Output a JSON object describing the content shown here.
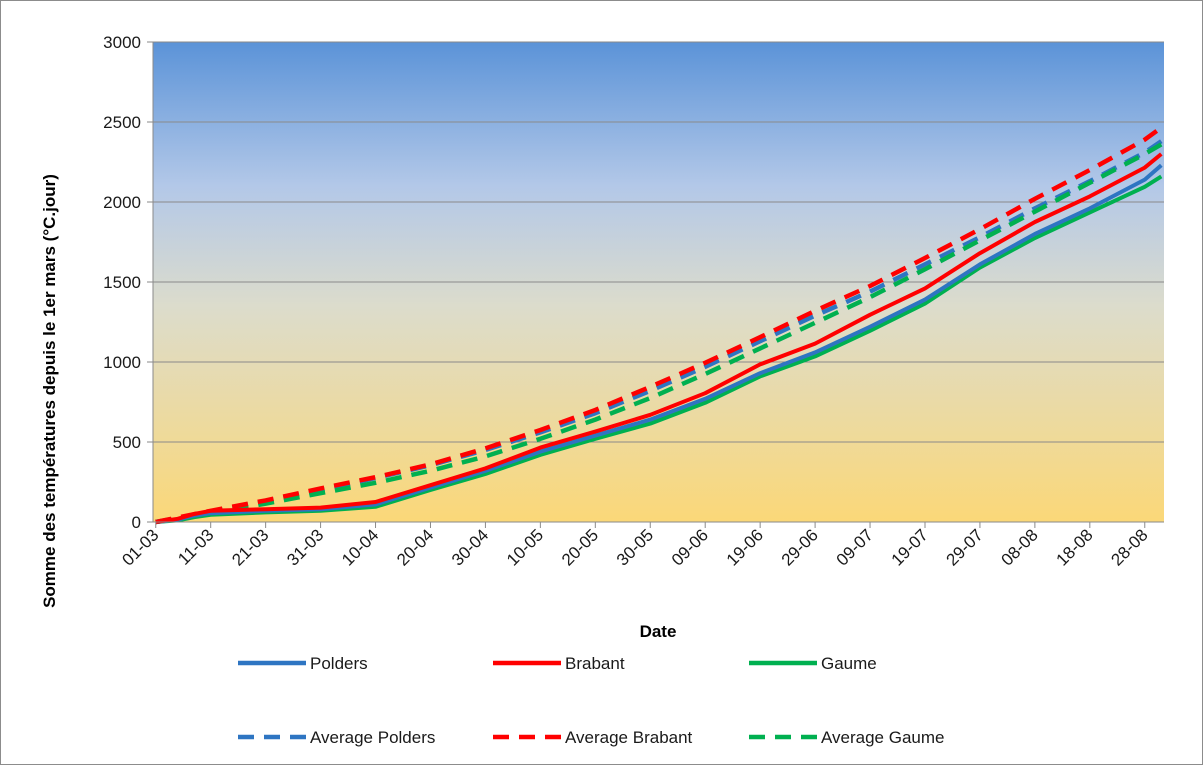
{
  "chart_data": {
    "type": "line",
    "xlabel": "Date",
    "ylabel": "Somme des températures depuis le 1er mars (°C.jour)",
    "ylim": [
      0,
      3000
    ],
    "yticks": [
      0,
      500,
      1000,
      1500,
      2000,
      2500,
      3000
    ],
    "xlim": [
      "01-03",
      "31-08"
    ],
    "xtick_labels": [
      "01-03",
      "11-03",
      "21-03",
      "31-03",
      "10-04",
      "20-04",
      "30-04",
      "10-05",
      "20-05",
      "30-05",
      "09-06",
      "19-06",
      "29-06",
      "09-07",
      "19-07",
      "29-07",
      "08-08",
      "18-08",
      "28-08"
    ],
    "grid": "horizontal",
    "background": "vertical gradient, blue (top) to light yellow/orange (bottom)",
    "legend_position": "bottom",
    "series": [
      {
        "name": "Polders",
        "color": "#2e75c2",
        "dash": "solid",
        "x": [
          "01-03",
          "05-03",
          "08-03",
          "11-03",
          "21-03",
          "31-03",
          "10-04",
          "20-04",
          "30-04",
          "10-05",
          "20-05",
          "30-05",
          "09-06",
          "19-06",
          "29-06",
          "09-07",
          "19-07",
          "29-07",
          "08-08",
          "18-08",
          "28-08",
          "31-08"
        ],
        "values": [
          0,
          15,
          40,
          55,
          70,
          80,
          110,
          215,
          320,
          440,
          540,
          640,
          770,
          930,
          1060,
          1220,
          1390,
          1610,
          1800,
          1960,
          2140,
          2230
        ]
      },
      {
        "name": "Brabant",
        "color": "#ff0000",
        "dash": "solid",
        "x": [
          "01-03",
          "05-03",
          "08-03",
          "11-03",
          "21-03",
          "31-03",
          "10-04",
          "20-04",
          "30-04",
          "10-05",
          "20-05",
          "30-05",
          "09-06",
          "19-06",
          "29-06",
          "09-07",
          "19-07",
          "29-07",
          "08-08",
          "18-08",
          "28-08",
          "31-08"
        ],
        "values": [
          0,
          20,
          50,
          70,
          80,
          90,
          125,
          230,
          335,
          465,
          565,
          670,
          805,
          985,
          1115,
          1295,
          1460,
          1680,
          1875,
          2035,
          2215,
          2300
        ]
      },
      {
        "name": "Gaume",
        "color": "#00b050",
        "dash": "solid",
        "x": [
          "01-03",
          "05-03",
          "08-03",
          "11-03",
          "21-03",
          "31-03",
          "10-04",
          "20-04",
          "30-04",
          "10-05",
          "20-05",
          "30-05",
          "09-06",
          "19-06",
          "29-06",
          "09-07",
          "19-07",
          "29-07",
          "08-08",
          "18-08",
          "28-08",
          "31-08"
        ],
        "values": [
          0,
          10,
          30,
          45,
          60,
          70,
          95,
          200,
          300,
          420,
          520,
          615,
          745,
          910,
          1035,
          1195,
          1365,
          1590,
          1775,
          1935,
          2095,
          2160
        ]
      },
      {
        "name": "Average Polders",
        "color": "#2e75c2",
        "dash": "dashed",
        "x": [
          "01-03",
          "11-03",
          "21-03",
          "31-03",
          "10-04",
          "20-04",
          "30-04",
          "10-05",
          "20-05",
          "30-05",
          "09-06",
          "19-06",
          "29-06",
          "09-07",
          "19-07",
          "29-07",
          "08-08",
          "18-08",
          "28-08",
          "31-08"
        ],
        "values": [
          0,
          65,
          130,
          200,
          275,
          355,
          450,
          560,
          680,
          820,
          970,
          1130,
          1290,
          1440,
          1610,
          1780,
          1960,
          2130,
          2310,
          2380
        ]
      },
      {
        "name": "Average Brabant",
        "color": "#ff0000",
        "dash": "dashed",
        "x": [
          "01-03",
          "11-03",
          "21-03",
          "31-03",
          "10-04",
          "20-04",
          "30-04",
          "10-05",
          "20-05",
          "30-05",
          "09-06",
          "19-06",
          "29-06",
          "09-07",
          "19-07",
          "29-07",
          "08-08",
          "18-08",
          "28-08",
          "31-08"
        ],
        "values": [
          0,
          70,
          135,
          210,
          280,
          360,
          460,
          575,
          700,
          845,
          995,
          1155,
          1320,
          1475,
          1650,
          1830,
          2020,
          2200,
          2390,
          2465
        ]
      },
      {
        "name": "Average Gaume",
        "color": "#00b050",
        "dash": "dashed",
        "x": [
          "01-03",
          "11-03",
          "21-03",
          "31-03",
          "10-04",
          "20-04",
          "30-04",
          "10-05",
          "20-05",
          "30-05",
          "09-06",
          "19-06",
          "29-06",
          "09-07",
          "19-07",
          "29-07",
          "08-08",
          "18-08",
          "28-08",
          "31-08"
        ],
        "values": [
          0,
          55,
          115,
          180,
          245,
          320,
          410,
          520,
          640,
          775,
          925,
          1085,
          1245,
          1405,
          1580,
          1760,
          1940,
          2120,
          2300,
          2360
        ]
      }
    ]
  }
}
